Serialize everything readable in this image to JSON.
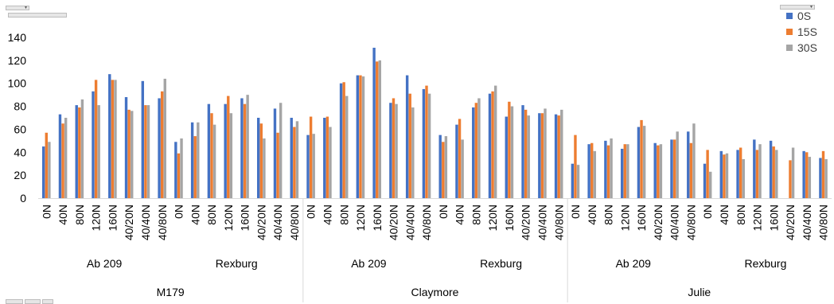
{
  "chart_data": {
    "type": "bar",
    "ylim": [
      0,
      140
    ],
    "yticks": [
      0,
      20,
      40,
      60,
      80,
      100,
      120,
      140
    ],
    "grid": false,
    "legend_position": "top-right",
    "legend_label": "",
    "series": [
      {
        "name": "0S",
        "color": "#4472C4"
      },
      {
        "name": "15S",
        "color": "#ED7D31"
      },
      {
        "name": "30S",
        "color": "#A5A5A5"
      }
    ],
    "treatments": [
      "0N",
      "40N",
      "80N",
      "120N",
      "160N",
      "40/20N",
      "40/40N",
      "40/80N"
    ],
    "groups": [
      {
        "label": "M179",
        "sites": [
          {
            "label": "Ab 209",
            "values": [
              [
                45,
                57,
                49
              ],
              [
                73,
                65,
                70
              ],
              [
                81,
                79,
                86
              ],
              [
                93,
                103,
                81
              ],
              [
                108,
                103,
                103
              ],
              [
                88,
                77,
                76
              ],
              [
                102,
                81,
                81
              ],
              [
                87,
                93,
                104
              ]
            ]
          },
          {
            "label": "Rexburg",
            "values": [
              [
                49,
                39,
                52
              ],
              [
                66,
                54,
                66
              ],
              [
                82,
                74,
                64
              ],
              [
                82,
                89,
                74
              ],
              [
                87,
                82,
                90
              ],
              [
                70,
                65,
                52
              ],
              [
                78,
                57,
                83
              ],
              [
                70,
                62,
                67
              ]
            ]
          }
        ]
      },
      {
        "label": "Claymore",
        "sites": [
          {
            "label": "Ab 209",
            "values": [
              [
                55,
                71,
                56
              ],
              [
                70,
                71,
                62
              ],
              [
                100,
                101,
                89
              ],
              [
                107,
                107,
                106
              ],
              [
                131,
                119,
                120
              ],
              [
                83,
                87,
                82
              ],
              [
                107,
                91,
                79
              ],
              [
                95,
                98,
                91
              ]
            ]
          },
          {
            "label": "Rexburg",
            "values": [
              [
                55,
                49,
                54
              ],
              [
                64,
                69,
                51
              ],
              [
                79,
                83,
                87
              ],
              [
                91,
                93,
                98
              ],
              [
                71,
                84,
                80
              ],
              [
                81,
                77,
                72
              ],
              [
                74,
                74,
                78
              ],
              [
                73,
                72,
                77
              ]
            ]
          }
        ]
      },
      {
        "label": "Julie",
        "sites": [
          {
            "label": "Ab 209",
            "values": [
              [
                30,
                55,
                29
              ],
              [
                47,
                48,
                41
              ],
              [
                50,
                46,
                52
              ],
              [
                43,
                47,
                47
              ],
              [
                62,
                68,
                63
              ],
              [
                48,
                46,
                47
              ],
              [
                51,
                51,
                58
              ],
              [
                58,
                48,
                65
              ]
            ]
          },
          {
            "label": "Rexburg",
            "values": [
              [
                30,
                42,
                23
              ],
              [
                41,
                38,
                39
              ],
              [
                42,
                44,
                34
              ],
              [
                51,
                42,
                47
              ],
              [
                50,
                45,
                42
              ],
              [
                null,
                33,
                44
              ],
              [
                41,
                40,
                36
              ],
              [
                35,
                41,
                34
              ]
            ]
          }
        ]
      }
    ]
  },
  "colors": {
    "axis": "#d9d9d9",
    "text": "#000000",
    "legend_text": "#404040"
  }
}
